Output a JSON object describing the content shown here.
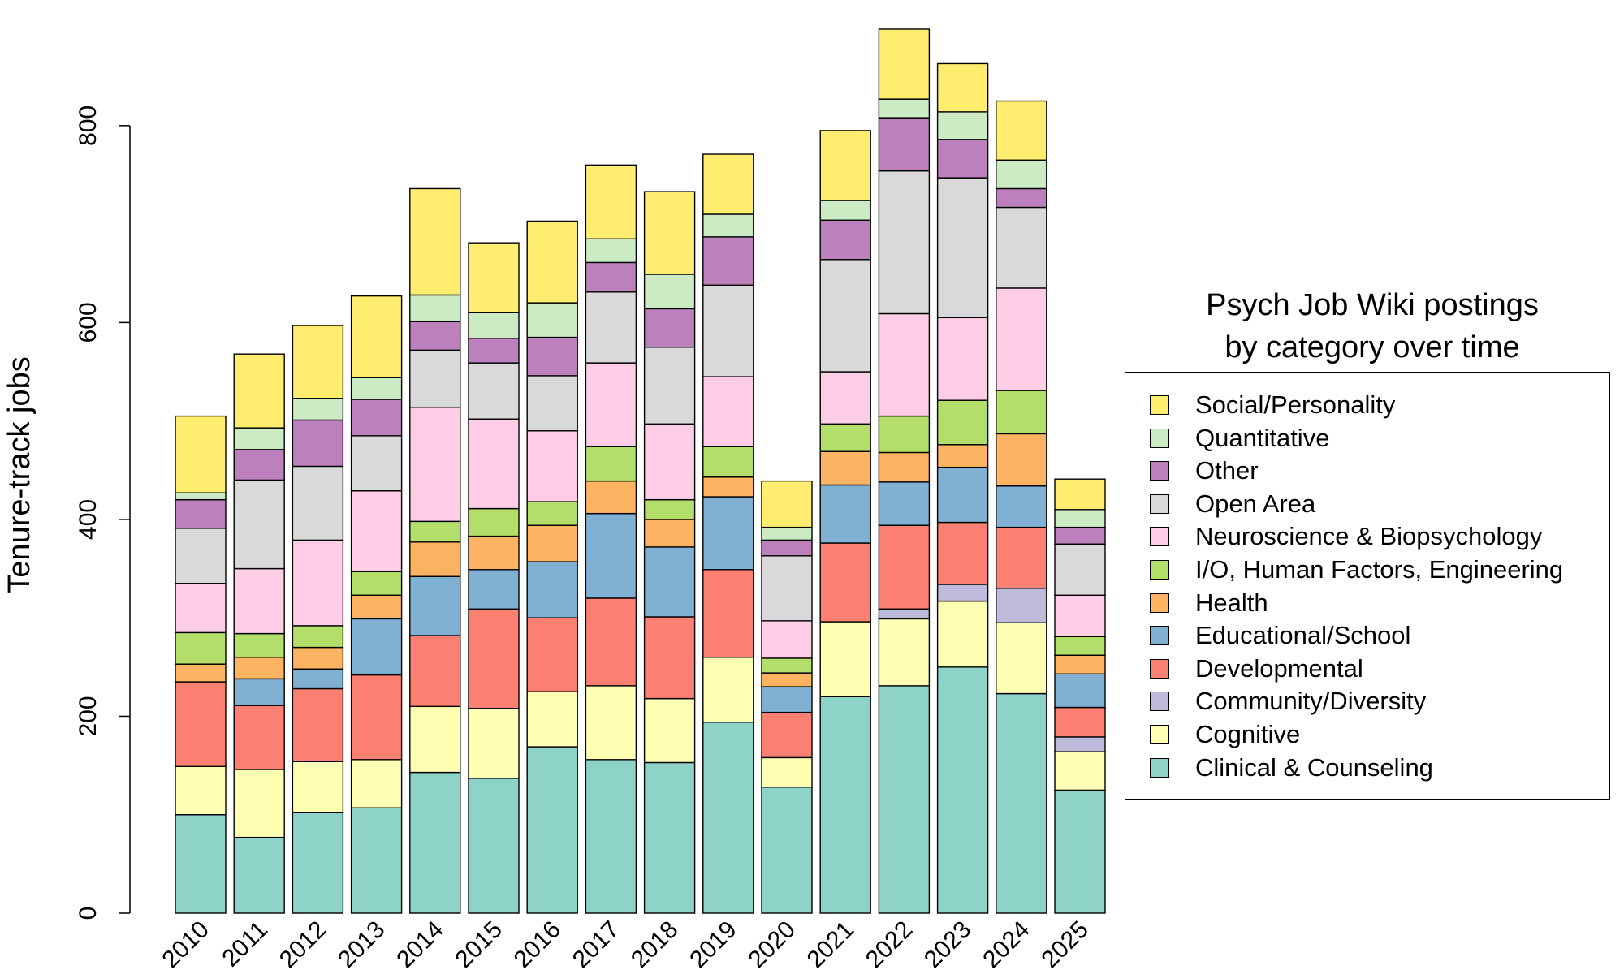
{
  "chart_data": {
    "type": "bar",
    "stacked": true,
    "title": "Psych Job Wiki postings\nby category over time",
    "title_lines": [
      "Psych Job Wiki postings",
      "by category over time"
    ],
    "ylabel": "Tenure-track jobs",
    "xlabel": "",
    "ylim": [
      0,
      900
    ],
    "yticks": [
      0,
      200,
      400,
      600,
      800
    ],
    "grid": false,
    "legend_position": "right",
    "categories": [
      "2010",
      "2011",
      "2012",
      "2013",
      "2014",
      "2015",
      "2016",
      "2017",
      "2018",
      "2019",
      "2020",
      "2021",
      "2022",
      "2023",
      "2024",
      "2025"
    ],
    "series": [
      {
        "name": "Clinical & Counseling",
        "color": "#8dd3c7",
        "values": [
          100,
          77,
          102,
          107,
          143,
          137,
          169,
          156,
          153,
          194,
          128,
          220,
          231,
          250,
          223,
          125
        ]
      },
      {
        "name": "Cognitive",
        "color": "#ffffb3",
        "values": [
          49,
          69,
          52,
          49,
          67,
          71,
          56,
          75,
          65,
          66,
          30,
          76,
          68,
          67,
          72,
          39
        ]
      },
      {
        "name": "Community/Diversity",
        "color": "#bebada",
        "values": [
          0,
          0,
          0,
          0,
          0,
          0,
          0,
          0,
          0,
          0,
          0,
          0,
          10,
          17,
          35,
          15
        ]
      },
      {
        "name": "Developmental",
        "color": "#fb8072",
        "values": [
          86,
          65,
          74,
          86,
          72,
          101,
          75,
          89,
          83,
          89,
          46,
          80,
          85,
          63,
          62,
          30
        ]
      },
      {
        "name": "Educational/School",
        "color": "#80b1d3",
        "values": [
          0,
          27,
          20,
          57,
          60,
          40,
          57,
          86,
          71,
          74,
          26,
          59,
          44,
          56,
          42,
          34
        ]
      },
      {
        "name": "Health",
        "color": "#fdb462",
        "values": [
          18,
          22,
          22,
          24,
          35,
          34,
          37,
          33,
          28,
          20,
          14,
          34,
          30,
          23,
          53,
          19
        ]
      },
      {
        "name": "I/O, Human Factors, Engineering",
        "color": "#b3de69",
        "values": [
          32,
          24,
          22,
          24,
          21,
          28,
          24,
          35,
          20,
          31,
          15,
          28,
          37,
          45,
          44,
          19
        ]
      },
      {
        "name": "Neuroscience & Biopsychology",
        "color": "#fccde5",
        "values": [
          50,
          66,
          87,
          82,
          116,
          91,
          72,
          85,
          77,
          71,
          38,
          53,
          104,
          84,
          104,
          42
        ]
      },
      {
        "name": "Open Area",
        "color": "#d9d9d9",
        "values": [
          56,
          90,
          75,
          56,
          58,
          57,
          56,
          72,
          78,
          93,
          66,
          114,
          145,
          142,
          82,
          52
        ]
      },
      {
        "name": "Other",
        "color": "#bc80bd",
        "values": [
          29,
          31,
          47,
          37,
          29,
          25,
          39,
          30,
          39,
          49,
          16,
          40,
          54,
          39,
          19,
          17
        ]
      },
      {
        "name": "Quantitative",
        "color": "#ccebc5",
        "values": [
          7,
          22,
          22,
          22,
          27,
          26,
          35,
          24,
          35,
          23,
          13,
          20,
          19,
          28,
          29,
          18
        ]
      },
      {
        "name": "Social/Personality",
        "color": "#ffed6f",
        "values": [
          78,
          75,
          74,
          83,
          108,
          71,
          83,
          75,
          84,
          61,
          47,
          71,
          71,
          49,
          60,
          31
        ]
      }
    ]
  }
}
